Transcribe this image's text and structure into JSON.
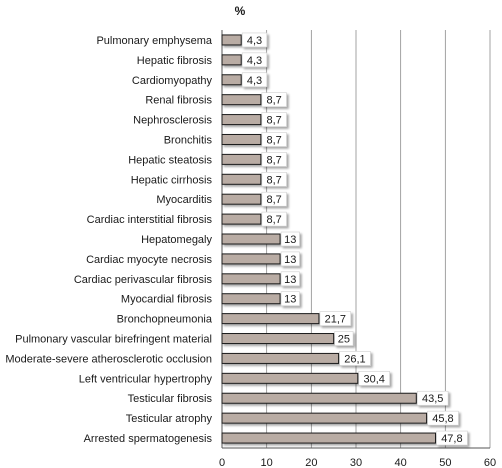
{
  "chart_data": {
    "type": "bar",
    "orientation": "horizontal",
    "title": "%",
    "categories": [
      "Pulmonary emphysema",
      "Hepatic fibrosis",
      "Cardiomyopathy",
      "Renal fibrosis",
      "Nephrosclerosis",
      "Bronchitis",
      "Hepatic steatosis",
      "Hepatic cirrhosis",
      "Myocarditis",
      "Cardiac interstitial fibrosis",
      "Hepatomegaly",
      "Cardiac myocyte necrosis",
      "Cardiac perivascular fibrosis",
      "Myocardial fibrosis",
      "Bronchopneumonia",
      "Pulmonary vascular birefringent material",
      "Moderate-severe atherosclerotic occlusion",
      "Left ventricular hypertrophy",
      "Testicular fibrosis",
      "Testicular atrophy",
      "Arrested spermatogenesis"
    ],
    "values": [
      4.3,
      4.3,
      4.3,
      8.7,
      8.7,
      8.7,
      8.7,
      8.7,
      8.7,
      8.7,
      13,
      13,
      13,
      13,
      21.7,
      25,
      26.1,
      30.4,
      43.5,
      45.8,
      47.8
    ],
    "data_labels": [
      "4,3",
      "4,3",
      "4,3",
      "8,7",
      "8,7",
      "8,7",
      "8,7",
      "8,7",
      "8,7",
      "8,7",
      "13",
      "13",
      "13",
      "13",
      "21,7",
      "25",
      "26,1",
      "30,4",
      "43,5",
      "45,8",
      "47,8"
    ],
    "x_ticks": [
      "0",
      "10",
      "20",
      "30",
      "40",
      "50",
      "60"
    ],
    "xlim": [
      0,
      60
    ],
    "grid": "vertical",
    "colors": {
      "bar": "#b9aca4",
      "bar_stroke": "#1a1a1a",
      "grid": "#8c8c8c"
    }
  }
}
